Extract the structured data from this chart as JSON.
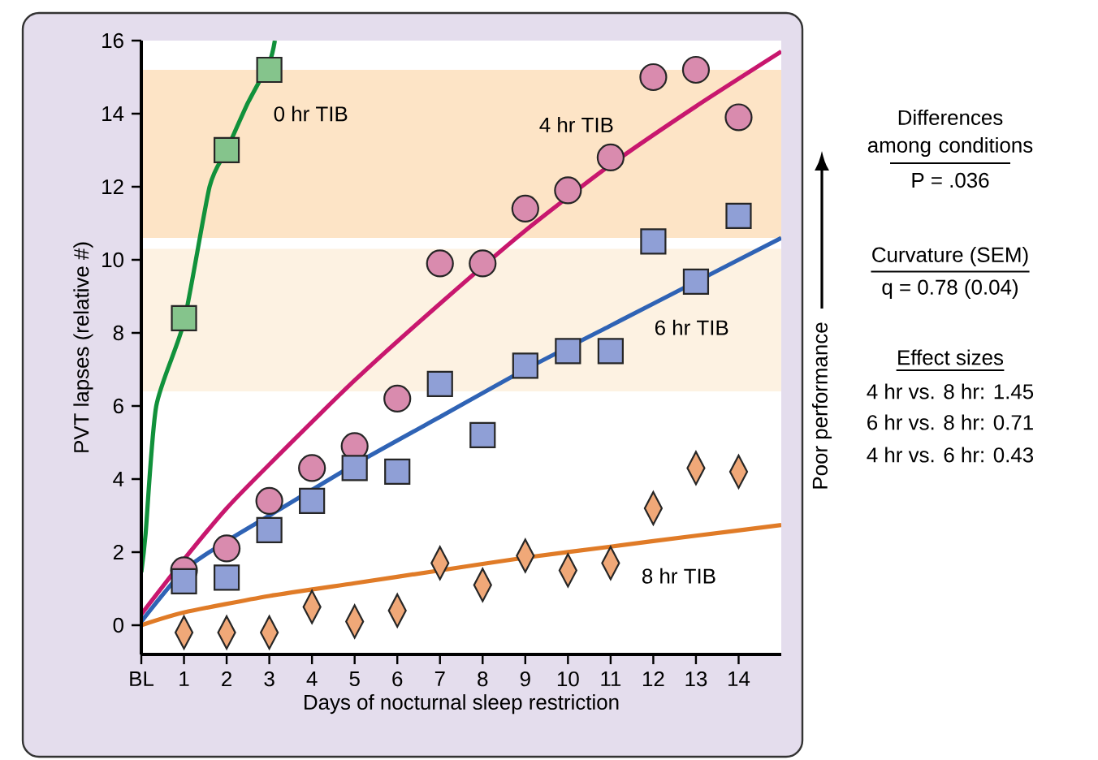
{
  "chart_data": {
    "type": "scatter",
    "xlabel": "Days of nocturnal sleep restriction",
    "ylabel": "PVT lapses (relative #)",
    "xlim": [
      0,
      15
    ],
    "ylim": [
      -0.8,
      16
    ],
    "xticks": [
      {
        "value": 0,
        "label": "BL"
      },
      1,
      2,
      3,
      4,
      5,
      6,
      7,
      8,
      9,
      10,
      11,
      12,
      13,
      14
    ],
    "yticks": [
      0,
      2,
      4,
      6,
      8,
      10,
      12,
      14,
      16
    ],
    "bands": [
      {
        "axis": "y",
        "from": 10.6,
        "to": 15.2,
        "color": "#fde4c6"
      },
      {
        "axis": "y",
        "from": 6.4,
        "to": 10.3,
        "color": "#fdf2e2"
      }
    ],
    "series": [
      {
        "name": "0 hr TIB",
        "marker": "square",
        "color": "#85c48c",
        "x": [
          1,
          2,
          3
        ],
        "values": [
          8.4,
          13.0,
          15.2
        ]
      },
      {
        "name": "4 hr TIB",
        "marker": "circle",
        "color": "#d98bae",
        "x": [
          1,
          2,
          3,
          4,
          5,
          6,
          7,
          8,
          9,
          10,
          11,
          12,
          13,
          14
        ],
        "values": [
          1.5,
          2.1,
          3.4,
          4.3,
          4.9,
          6.2,
          9.9,
          9.9,
          11.4,
          11.9,
          12.8,
          15.0,
          15.2,
          13.9
        ]
      },
      {
        "name": "6 hr TIB",
        "marker": "square",
        "color": "#8f9fd6",
        "x": [
          1,
          2,
          3,
          4,
          5,
          6,
          7,
          8,
          9,
          10,
          11,
          12,
          13,
          14
        ],
        "values": [
          1.2,
          1.3,
          2.6,
          3.4,
          4.3,
          4.2,
          6.6,
          5.2,
          7.1,
          7.5,
          7.5,
          10.5,
          9.4,
          11.2
        ]
      },
      {
        "name": "8 hr TIB",
        "marker": "diamond",
        "color": "#f0a878",
        "x": [
          1,
          2,
          3,
          4,
          5,
          6,
          7,
          8,
          9,
          10,
          11,
          12,
          13,
          14
        ],
        "values": [
          -0.2,
          -0.2,
          -0.2,
          0.5,
          0.1,
          0.4,
          1.7,
          1.1,
          1.9,
          1.5,
          1.7,
          3.2,
          4.3,
          4.2
        ]
      },
      {
        "type": "line",
        "color": "#11913b",
        "x": [
          0,
          0.1,
          0.35,
          1,
          1.6,
          2,
          2.5,
          3,
          3.13
        ],
        "values": [
          1.45,
          2.5,
          6.0,
          8.3,
          12.0,
          13.0,
          14.3,
          15.4,
          16.0
        ]
      },
      {
        "type": "line",
        "color": "#c8176e",
        "x": [
          0,
          1,
          2,
          3,
          5,
          7,
          9,
          11,
          13,
          15
        ],
        "values": [
          0.3,
          1.8,
          3.2,
          4.4,
          6.7,
          8.8,
          10.8,
          12.6,
          14.2,
          15.7
        ]
      },
      {
        "type": "line",
        "color": "#2f63b5",
        "x": [
          0,
          1,
          2,
          3,
          5,
          7,
          9,
          11,
          13,
          15
        ],
        "values": [
          0.1,
          1.5,
          2.3,
          3.0,
          4.4,
          5.7,
          7.0,
          8.2,
          9.4,
          10.6
        ]
      },
      {
        "type": "line",
        "color": "#e07b27",
        "x": [
          0,
          1,
          3,
          5,
          7,
          9,
          11,
          13,
          15
        ],
        "values": [
          0.0,
          0.35,
          0.8,
          1.15,
          1.5,
          1.85,
          2.15,
          2.45,
          2.74
        ]
      }
    ],
    "annotations": [
      "Differences among conditions",
      "P = .036",
      "Curvature (SEM)",
      "q = 0.78 (0.04)",
      "Effect sizes",
      "4 hr vs. 8 hr: 1.45",
      "6 hr vs. 8 hr: 0.71",
      "4 hr vs. 6 hr: 0.43",
      "Poor performance"
    ]
  }
}
